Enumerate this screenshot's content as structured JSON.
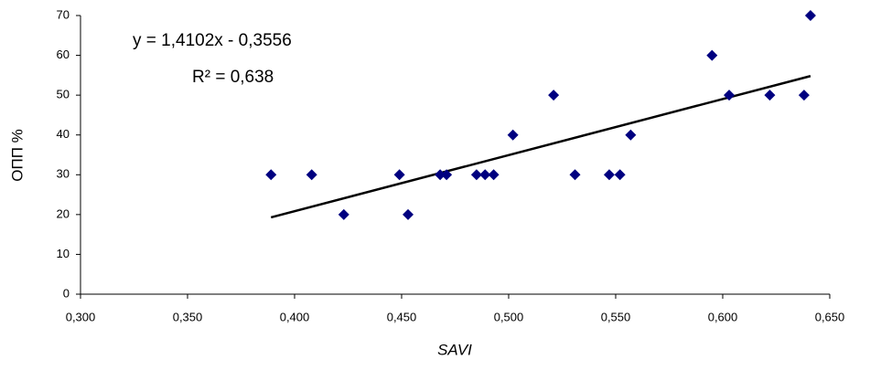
{
  "chart_data": {
    "type": "scatter",
    "x_label": "SAVI",
    "y_label": "ОПП %",
    "annotations": [
      "y = 1,4102x - 0,3556",
      "R² = 0,638"
    ],
    "series": [
      {
        "name": "ОПП",
        "color": "#000080",
        "x": [
          0.389,
          0.408,
          0.423,
          0.449,
          0.453,
          0.468,
          0.471,
          0.485,
          0.489,
          0.493,
          0.502,
          0.521,
          0.531,
          0.547,
          0.552,
          0.557,
          0.595,
          0.603,
          0.622,
          0.638,
          0.641
        ],
        "values": [
          30,
          30,
          20,
          30,
          20,
          30,
          30,
          30,
          30,
          30,
          40,
          50,
          30,
          30,
          30,
          40,
          60,
          50,
          50,
          50,
          70
        ]
      }
    ],
    "trendline": {
      "color": "#000000",
      "x": [
        0.389,
        0.641
      ],
      "values": [
        19.3,
        54.8
      ]
    },
    "xlim": [
      0.3,
      0.65
    ],
    "xticks": [
      {
        "value": 0.3,
        "label": "0,300"
      },
      {
        "value": 0.35,
        "label": "0,350"
      },
      {
        "value": 0.4,
        "label": "0,400"
      },
      {
        "value": 0.45,
        "label": "0,450"
      },
      {
        "value": 0.5,
        "label": "0,500"
      },
      {
        "value": 0.55,
        "label": "0,550"
      },
      {
        "value": 0.6,
        "label": "0,600"
      },
      {
        "value": 0.65,
        "label": "0,650"
      }
    ],
    "ylim": [
      0,
      70
    ],
    "yticks": [
      0,
      10,
      20,
      30,
      40,
      50,
      60,
      70
    ],
    "grid": false
  }
}
